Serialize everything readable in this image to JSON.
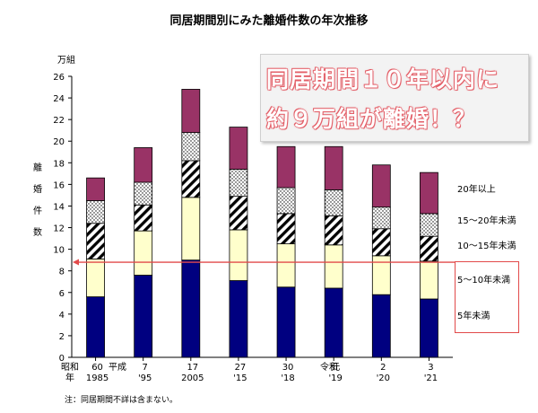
{
  "title": "同居期間別にみた離婚件数の年次推移",
  "callout": {
    "line1": "同居期間１０年以内に",
    "line2": "約９万組が離婚！？"
  },
  "note": "注：同居期間不詳は含まない。",
  "colors": {
    "under5": "#000080",
    "y5_10": "#ffffcc",
    "y10_15": "hatch-diagonal",
    "y15_20": "dots",
    "over20": "#993366",
    "threshold_line": "#e24a4a"
  },
  "chart_data": {
    "type": "bar",
    "stacked": true,
    "title": "同居期間別にみた離婚件数の年次推移",
    "ylabel": "離婚件数",
    "yunit": "万組",
    "ylim": [
      0,
      26
    ],
    "yticks": [
      0,
      2,
      4,
      6,
      8,
      10,
      12,
      14,
      16,
      18,
      20,
      22,
      24,
      26
    ],
    "era_labels": [
      "昭和",
      "年",
      "平成",
      "令和"
    ],
    "categories": [
      {
        "top": "60",
        "bottom": "1985"
      },
      {
        "top": "7",
        "bottom": "'95"
      },
      {
        "top": "17",
        "bottom": "2005"
      },
      {
        "top": "27",
        "bottom": "'15"
      },
      {
        "top": "30",
        "bottom": "'18"
      },
      {
        "top": "元",
        "bottom": "'19"
      },
      {
        "top": "2",
        "bottom": "'20"
      },
      {
        "top": "3",
        "bottom": "'21"
      }
    ],
    "series": [
      {
        "name": "5年未満",
        "values": [
          5.6,
          7.6,
          9.0,
          7.1,
          6.5,
          6.4,
          5.8,
          5.4
        ]
      },
      {
        "name": "5～10年未満",
        "values": [
          3.5,
          4.1,
          5.8,
          4.7,
          4.0,
          4.0,
          3.6,
          3.5
        ]
      },
      {
        "name": "10～15年未満",
        "values": [
          3.3,
          2.4,
          3.4,
          3.1,
          2.8,
          2.7,
          2.5,
          2.3
        ]
      },
      {
        "name": "15～20年未満",
        "values": [
          2.1,
          2.1,
          2.6,
          2.5,
          2.4,
          2.4,
          2.0,
          2.1
        ]
      },
      {
        "name": "20年以上",
        "values": [
          2.1,
          3.2,
          4.0,
          3.9,
          3.8,
          4.0,
          3.9,
          3.8
        ]
      }
    ],
    "reference_line": 8.8,
    "grid": false
  }
}
